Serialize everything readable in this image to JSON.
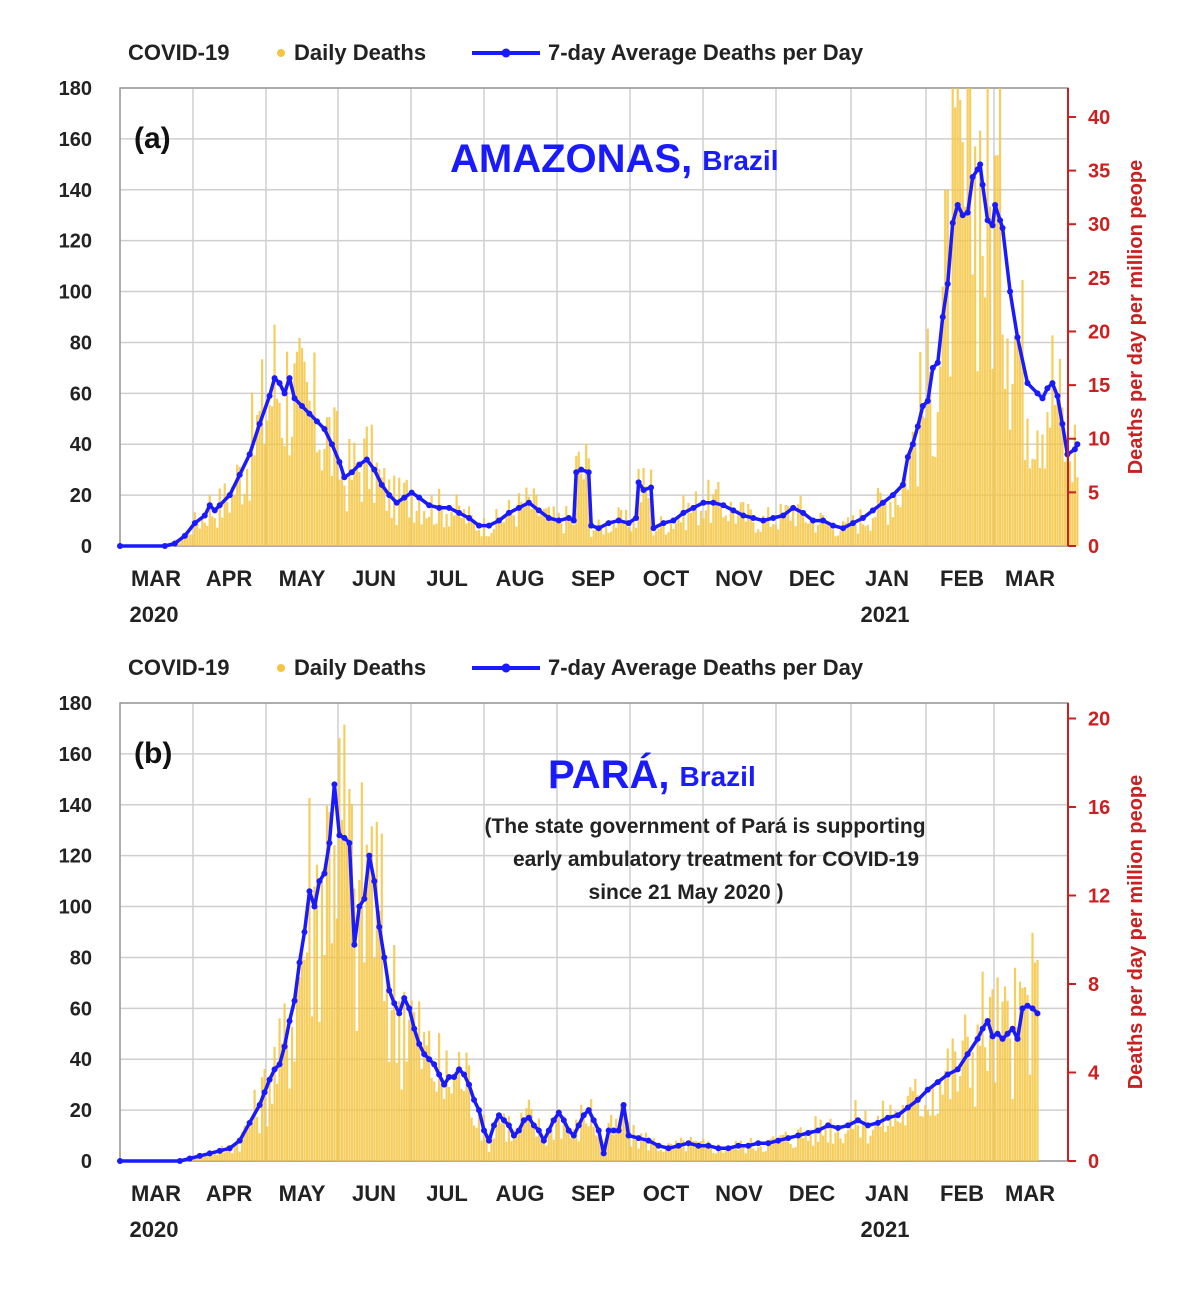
{
  "colors": {
    "daily_bar": "#f5c542",
    "average_line": "#1a1aff",
    "right_axis": "#cc1f1f",
    "grid": "#cfcfcf"
  },
  "chart_data": [
    {
      "type": "bar",
      "panel_label": "(a)",
      "title": "AMAZONAS,",
      "title_suffix": "Brazil",
      "note_lines": [],
      "legend": {
        "prefix": "COVID-19",
        "daily": "Daily Deaths",
        "average": "7-day Average Deaths per Day"
      },
      "x_months": [
        "MAR",
        "APR",
        "MAY",
        "JUN",
        "JUL",
        "AUG",
        "SEP",
        "OCT",
        "NOV",
        "DEC",
        "JAN",
        "FEB",
        "MAR"
      ],
      "x_years": [
        {
          "index": 0,
          "label": "2020"
        },
        {
          "index": 10,
          "label": "2021"
        }
      ],
      "x_domain_days": [
        0,
        365
      ],
      "ylim": [
        0,
        180
      ],
      "yticks": [
        0,
        20,
        40,
        60,
        80,
        100,
        120,
        140,
        160,
        180
      ],
      "y2label": "Deaths per day per million peope",
      "y2lim": [
        0,
        42.7
      ],
      "y2ticks": [
        0,
        5,
        10,
        15,
        20,
        25,
        30,
        35,
        40
      ],
      "series": [
        {
          "name": "7-day Average Deaths per Day",
          "points": [
            [
              0,
              0
            ],
            [
              18,
              0
            ],
            [
              22,
              1
            ],
            [
              26,
              4
            ],
            [
              30,
              9
            ],
            [
              34,
              12
            ],
            [
              36,
              16
            ],
            [
              38,
              14
            ],
            [
              40,
              16
            ],
            [
              44,
              20
            ],
            [
              48,
              28
            ],
            [
              52,
              36
            ],
            [
              56,
              48
            ],
            [
              60,
              59
            ],
            [
              62,
              66
            ],
            [
              64,
              64
            ],
            [
              66,
              60
            ],
            [
              68,
              66
            ],
            [
              70,
              58
            ],
            [
              73,
              55
            ],
            [
              76,
              52
            ],
            [
              79,
              49
            ],
            [
              82,
              46
            ],
            [
              85,
              40
            ],
            [
              88,
              33
            ],
            [
              90,
              27
            ],
            [
              93,
              29
            ],
            [
              96,
              32
            ],
            [
              99,
              34
            ],
            [
              102,
              30
            ],
            [
              105,
              24
            ],
            [
              108,
              20
            ],
            [
              111,
              17
            ],
            [
              114,
              19
            ],
            [
              117,
              21
            ],
            [
              120,
              19
            ],
            [
              124,
              16
            ],
            [
              128,
              15
            ],
            [
              132,
              15
            ],
            [
              136,
              13
            ],
            [
              140,
              11
            ],
            [
              144,
              8
            ],
            [
              148,
              8
            ],
            [
              152,
              10
            ],
            [
              156,
              13
            ],
            [
              160,
              15
            ],
            [
              164,
              17
            ],
            [
              168,
              14
            ],
            [
              172,
              11
            ],
            [
              176,
              10
            ],
            [
              180,
              11
            ],
            [
              182,
              10
            ],
            [
              183,
              29
            ],
            [
              185,
              30
            ],
            [
              188,
              29
            ],
            [
              189,
              8
            ],
            [
              192,
              7
            ],
            [
              196,
              9
            ],
            [
              200,
              10
            ],
            [
              204,
              9
            ],
            [
              207,
              11
            ],
            [
              208,
              25
            ],
            [
              210,
              22
            ],
            [
              213,
              23
            ],
            [
              214,
              7
            ],
            [
              218,
              9
            ],
            [
              222,
              10
            ],
            [
              226,
              13
            ],
            [
              230,
              15
            ],
            [
              234,
              17
            ],
            [
              238,
              17
            ],
            [
              242,
              16
            ],
            [
              246,
              14
            ],
            [
              250,
              12
            ],
            [
              254,
              11
            ],
            [
              258,
              10
            ],
            [
              262,
              11
            ],
            [
              266,
              12
            ],
            [
              270,
              15
            ],
            [
              274,
              13
            ],
            [
              278,
              10
            ],
            [
              282,
              10
            ],
            [
              286,
              8
            ],
            [
              290,
              7
            ],
            [
              294,
              9
            ],
            [
              298,
              11
            ],
            [
              302,
              14
            ],
            [
              306,
              17
            ],
            [
              310,
              20
            ],
            [
              314,
              24
            ],
            [
              316,
              35
            ],
            [
              318,
              40
            ],
            [
              320,
              47
            ],
            [
              322,
              55
            ],
            [
              324,
              57
            ],
            [
              326,
              70
            ],
            [
              328,
              72
            ],
            [
              330,
              90
            ],
            [
              332,
              103
            ],
            [
              334,
              127
            ],
            [
              336,
              134
            ],
            [
              338,
              130
            ],
            [
              340,
              131
            ],
            [
              342,
              145
            ],
            [
              344,
              148
            ],
            [
              345,
              150
            ],
            [
              346,
              142
            ],
            [
              348,
              128
            ],
            [
              350,
              126
            ],
            [
              351,
              134
            ],
            [
              353,
              128
            ],
            [
              354,
              125
            ],
            [
              357,
              100
            ],
            [
              360,
              82
            ],
            [
              364,
              64
            ],
            [
              368,
              60
            ],
            [
              370,
              58
            ],
            [
              372,
              62
            ],
            [
              374,
              64
            ],
            [
              376,
              59
            ],
            [
              378,
              48
            ],
            [
              380,
              36
            ],
            [
              383,
              38
            ],
            [
              384,
              40
            ]
          ]
        }
      ]
    },
    {
      "type": "bar",
      "panel_label": "(b)",
      "title": "PARÁ,",
      "title_suffix": "Brazil",
      "note_lines": [
        "(The state government of Pará is supporting",
        "early ambulatory treatment for COVID-19",
        "since 21 May 2020 )"
      ],
      "legend": {
        "prefix": "COVID-19",
        "daily": "Daily Deaths",
        "average": "7-day Average Deaths per Day"
      },
      "x_months": [
        "MAR",
        "APR",
        "MAY",
        "JUN",
        "JUL",
        "AUG",
        "SEP",
        "OCT",
        "NOV",
        "DEC",
        "JAN",
        "FEB",
        "MAR"
      ],
      "x_years": [
        {
          "index": 0,
          "label": "2020"
        },
        {
          "index": 10,
          "label": "2021"
        }
      ],
      "x_domain_days": [
        0,
        365
      ],
      "ylim": [
        0,
        180
      ],
      "yticks": [
        0,
        20,
        40,
        60,
        80,
        100,
        120,
        140,
        160,
        180
      ],
      "y2label": "Deaths per day per million peope",
      "y2lim": [
        0,
        20.7
      ],
      "y2ticks": [
        0,
        4,
        8,
        12,
        16,
        20
      ],
      "series": [
        {
          "name": "7-day Average Deaths per Day",
          "points": [
            [
              0,
              0
            ],
            [
              24,
              0
            ],
            [
              28,
              1
            ],
            [
              32,
              2
            ],
            [
              36,
              3
            ],
            [
              40,
              4
            ],
            [
              44,
              5
            ],
            [
              48,
              8
            ],
            [
              52,
              15
            ],
            [
              56,
              22
            ],
            [
              58,
              27
            ],
            [
              60,
              32
            ],
            [
              62,
              36
            ],
            [
              64,
              38
            ],
            [
              66,
              45
            ],
            [
              68,
              55
            ],
            [
              70,
              63
            ],
            [
              72,
              78
            ],
            [
              74,
              90
            ],
            [
              76,
              106
            ],
            [
              78,
              100
            ],
            [
              80,
              110
            ],
            [
              82,
              113
            ],
            [
              84,
              125
            ],
            [
              86,
              148
            ],
            [
              88,
              128
            ],
            [
              90,
              127
            ],
            [
              92,
              125
            ],
            [
              94,
              85
            ],
            [
              96,
              100
            ],
            [
              98,
              103
            ],
            [
              100,
              120
            ],
            [
              102,
              110
            ],
            [
              104,
              92
            ],
            [
              106,
              80
            ],
            [
              108,
              67
            ],
            [
              110,
              62
            ],
            [
              112,
              58
            ],
            [
              114,
              64
            ],
            [
              116,
              60
            ],
            [
              118,
              52
            ],
            [
              120,
              46
            ],
            [
              122,
              42
            ],
            [
              124,
              40
            ],
            [
              126,
              38
            ],
            [
              128,
              34
            ],
            [
              130,
              30
            ],
            [
              132,
              33
            ],
            [
              134,
              33
            ],
            [
              136,
              36
            ],
            [
              138,
              34
            ],
            [
              140,
              30
            ],
            [
              142,
              24
            ],
            [
              144,
              20
            ],
            [
              146,
              12
            ],
            [
              148,
              8
            ],
            [
              150,
              14
            ],
            [
              152,
              18
            ],
            [
              154,
              16
            ],
            [
              156,
              14
            ],
            [
              158,
              10
            ],
            [
              160,
              12
            ],
            [
              162,
              16
            ],
            [
              164,
              17
            ],
            [
              166,
              14
            ],
            [
              168,
              12
            ],
            [
              170,
              8
            ],
            [
              172,
              12
            ],
            [
              174,
              16
            ],
            [
              176,
              19
            ],
            [
              178,
              16
            ],
            [
              180,
              12
            ],
            [
              182,
              10
            ],
            [
              184,
              14
            ],
            [
              186,
              18
            ],
            [
              188,
              20
            ],
            [
              190,
              16
            ],
            [
              192,
              12
            ],
            [
              194,
              3
            ],
            [
              196,
              12
            ],
            [
              198,
              12
            ],
            [
              200,
              12
            ],
            [
              202,
              22
            ],
            [
              204,
              10
            ],
            [
              208,
              9
            ],
            [
              212,
              8
            ],
            [
              216,
              6
            ],
            [
              220,
              5
            ],
            [
              224,
              6
            ],
            [
              228,
              7
            ],
            [
              232,
              6
            ],
            [
              236,
              6
            ],
            [
              240,
              5
            ],
            [
              244,
              5
            ],
            [
              248,
              6
            ],
            [
              252,
              6
            ],
            [
              256,
              7
            ],
            [
              260,
              7
            ],
            [
              264,
              8
            ],
            [
              268,
              9
            ],
            [
              272,
              10
            ],
            [
              276,
              11
            ],
            [
              280,
              12
            ],
            [
              284,
              14
            ],
            [
              288,
              13
            ],
            [
              292,
              14
            ],
            [
              296,
              16
            ],
            [
              300,
              14
            ],
            [
              304,
              15
            ],
            [
              308,
              17
            ],
            [
              312,
              18
            ],
            [
              316,
              21
            ],
            [
              320,
              24
            ],
            [
              324,
              28
            ],
            [
              328,
              31
            ],
            [
              332,
              34
            ],
            [
              336,
              36
            ],
            [
              340,
              42
            ],
            [
              344,
              48
            ],
            [
              346,
              52
            ],
            [
              348,
              55
            ],
            [
              350,
              49
            ],
            [
              352,
              50
            ],
            [
              354,
              48
            ],
            [
              356,
              50
            ],
            [
              358,
              52
            ],
            [
              360,
              48
            ],
            [
              362,
              60
            ],
            [
              364,
              61
            ],
            [
              366,
              60
            ],
            [
              368,
              58
            ]
          ]
        }
      ]
    }
  ]
}
